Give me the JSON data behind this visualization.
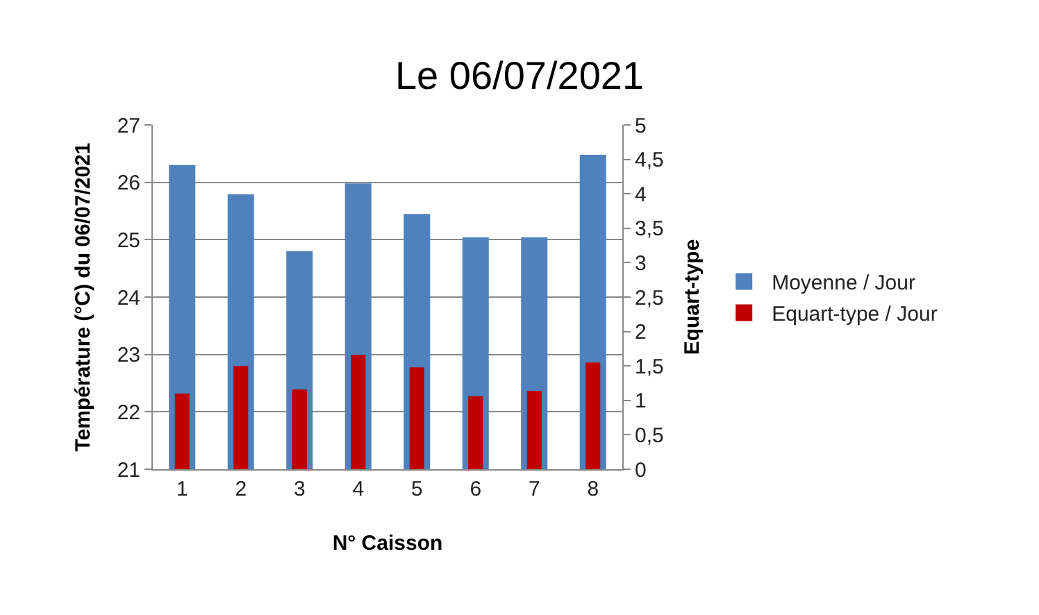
{
  "chart_data": {
    "type": "bar",
    "title": "Le 06/07/2021",
    "xlabel": "N° Caisson",
    "ylabel": "Température (°C) du 06/07/2021",
    "y2label": "Equart-type",
    "categories": [
      "1",
      "2",
      "3",
      "4",
      "5",
      "6",
      "7",
      "8"
    ],
    "series": [
      {
        "name": "Moyenne / Jour",
        "color": "#4f81bd",
        "values": [
          26.3,
          25.79,
          24.8,
          25.98,
          25.45,
          25.04,
          25.04,
          26.48
        ]
      },
      {
        "name": "Equart-type / Jour",
        "color": "#c00000",
        "axis": "y2",
        "values": [
          1.1,
          1.5,
          1.16,
          1.66,
          1.48,
          1.06,
          1.14,
          1.55
        ]
      }
    ],
    "ylim": [
      21,
      27
    ],
    "yticks": [
      21,
      22,
      23,
      24,
      25,
      26,
      27
    ],
    "y2lim": [
      0,
      5
    ],
    "y2ticks": [
      0,
      {
        "value": 0.5,
        "label": "0,5"
      },
      1,
      {
        "value": 1.5,
        "label": "1,5"
      },
      2,
      {
        "value": 2.5,
        "label": "2,5"
      },
      3,
      {
        "value": 3.5,
        "label": "3,5"
      },
      4,
      {
        "value": 4.5,
        "label": "4,5"
      },
      5
    ],
    "grid": "y",
    "legend": "right"
  }
}
